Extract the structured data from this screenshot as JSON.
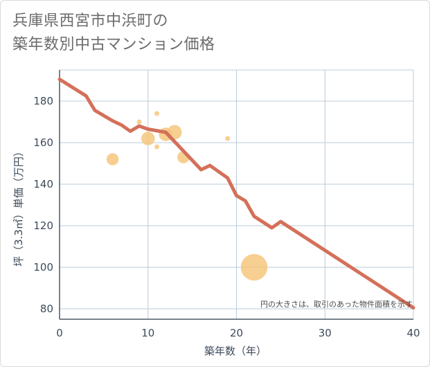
{
  "title_line1": "兵庫県西宮市中浜町の",
  "title_line2": "築年数別中古マンション価格",
  "chart_data": {
    "type": "scatter",
    "xlabel": "築年数（年）",
    "ylabel": "坪（3.3㎡）単価（万円）",
    "xlim": [
      0,
      40
    ],
    "ylim": [
      75,
      195
    ],
    "x_ticks": [
      0,
      10,
      20,
      30,
      40
    ],
    "y_ticks": [
      80,
      100,
      120,
      140,
      160,
      180
    ],
    "grid": true,
    "note": "円の大きさは、取引のあった物件面積を示す",
    "colors": {
      "trend": "#d4705a",
      "bubble": "#f5c77e"
    },
    "trend": {
      "x": [
        0,
        3,
        4,
        6,
        7,
        8,
        9,
        10,
        12,
        13,
        14,
        15,
        16,
        17,
        18,
        19,
        20,
        21,
        22,
        24,
        25,
        40
      ],
      "y": [
        190.5,
        182.5,
        175.5,
        170.5,
        168.5,
        165.5,
        168,
        166.5,
        165,
        160.5,
        156,
        151.5,
        147,
        149,
        146,
        143,
        134.5,
        132,
        124.5,
        119,
        122,
        80.5
      ]
    },
    "points": [
      {
        "x": 6,
        "y": 152,
        "size": 2.5
      },
      {
        "x": 9,
        "y": 170,
        "size": 1
      },
      {
        "x": 10,
        "y": 162,
        "size": 2.8
      },
      {
        "x": 11,
        "y": 174,
        "size": 1
      },
      {
        "x": 11,
        "y": 158,
        "size": 1
      },
      {
        "x": 12,
        "y": 164,
        "size": 2.8
      },
      {
        "x": 13,
        "y": 165,
        "size": 3
      },
      {
        "x": 14,
        "y": 153,
        "size": 2.5
      },
      {
        "x": 19,
        "y": 162,
        "size": 1
      },
      {
        "x": 22,
        "y": 100,
        "size": 5.5
      }
    ]
  }
}
